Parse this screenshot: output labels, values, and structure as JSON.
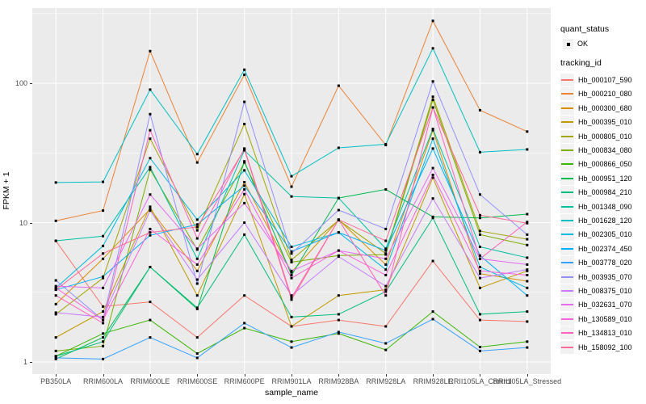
{
  "chart_data": {
    "type": "line",
    "title": "",
    "xlabel": "sample_name",
    "ylabel": "FPKM + 1",
    "y_scale": "log10",
    "ylim": [
      0.83,
      345
    ],
    "y_ticks": [
      1,
      10,
      100
    ],
    "y_tick_labels": [
      "1",
      "10",
      "100"
    ],
    "grid": true,
    "legend_position": "right",
    "point_color": "#000000",
    "categories": [
      "PB350LA",
      "RRIM600LA",
      "RRIM600LE",
      "RRIM600SE",
      "RRIM600PE",
      "RRIM901LA",
      "RRIM928BA",
      "RRIM928LA",
      "RRIM928LE",
      "RRII105LA_Control",
      "RRII105LA_Stressed"
    ],
    "series": [
      {
        "name": "Hb_000107_590",
        "color": "#F8766D",
        "values": [
          7.4,
          2.5,
          2.7,
          1.5,
          3.0,
          1.8,
          2.0,
          1.8,
          5.3,
          2.0,
          1.95
        ]
      },
      {
        "name": "Hb_000210_080",
        "color": "#EB8335",
        "values": [
          10.3,
          12.2,
          170,
          27,
          115,
          18.1,
          96,
          36,
          280,
          64,
          45
        ]
      },
      {
        "name": "Hb_000300_680",
        "color": "#D89000",
        "values": [
          2.6,
          5.5,
          12.5,
          4.5,
          19.5,
          4.4,
          10.5,
          5.0,
          46,
          4.3,
          3.8
        ]
      },
      {
        "name": "Hb_000395_010",
        "color": "#C09B00",
        "values": [
          1.5,
          2.3,
          13,
          3.0,
          16,
          1.8,
          3.0,
          3.3,
          21,
          3.4,
          4.5
        ]
      },
      {
        "name": "Hb_000805_010",
        "color": "#A3A500",
        "values": [
          2.2,
          4.0,
          40,
          8.8,
          51,
          5.4,
          10.4,
          6.0,
          80,
          8.7,
          7.6
        ]
      },
      {
        "name": "Hb_000834_080",
        "color": "#7CAE00",
        "values": [
          1.2,
          1.3,
          24,
          6.4,
          27,
          5.2,
          5.8,
          5.9,
          76,
          8.2,
          6.9
        ]
      },
      {
        "name": "Hb_000866_050",
        "color": "#39B600",
        "values": [
          1.1,
          1.6,
          2.0,
          1.15,
          1.75,
          1.4,
          1.6,
          1.22,
          2.3,
          1.28,
          1.4
        ]
      },
      {
        "name": "Hb_000951_120",
        "color": "#00BB4E",
        "values": [
          1.05,
          1.5,
          4.8,
          2.4,
          27.5,
          4.2,
          15,
          17.3,
          11,
          10.8,
          11.5
        ]
      },
      {
        "name": "Hb_000984_210",
        "color": "#00BF7D",
        "values": [
          1.1,
          1.4,
          4.8,
          2.45,
          8.2,
          2.1,
          2.2,
          3.2,
          10.8,
          2.2,
          2.3
        ]
      },
      {
        "name": "Hb_001348_090",
        "color": "#00C1A3",
        "values": [
          7.4,
          8.0,
          25,
          5.5,
          33,
          15.4,
          15,
          6.5,
          47,
          6.7,
          5.6
        ]
      },
      {
        "name": "Hb_001628_120",
        "color": "#00BFC4",
        "values": [
          19.4,
          19.6,
          90,
          31,
          125,
          21.5,
          34.4,
          36.5,
          178,
          32,
          33.5
        ]
      },
      {
        "name": "Hb_002305_010",
        "color": "#00BAE0",
        "values": [
          3.4,
          6.8,
          29,
          10.5,
          23.7,
          6.7,
          8.5,
          4.6,
          40,
          4.8,
          3.4
        ]
      },
      {
        "name": "Hb_002374_450",
        "color": "#00B0F6",
        "values": [
          3.3,
          4.1,
          8.1,
          9.7,
          18.4,
          6.2,
          8.5,
          6.3,
          34,
          5.8,
          3.0
        ]
      },
      {
        "name": "Hb_003778_020",
        "color": "#35A2FF",
        "values": [
          1.07,
          1.05,
          1.5,
          1.07,
          1.9,
          1.27,
          1.64,
          1.36,
          2.03,
          1.2,
          1.27
        ]
      },
      {
        "name": "Hb_003935_070",
        "color": "#9590FF",
        "values": [
          3.85,
          2.0,
          60,
          3.65,
          73.5,
          6.0,
          12.3,
          9.0,
          103,
          15.9,
          8.2
        ]
      },
      {
        "name": "Hb_008375_010",
        "color": "#C77CFF",
        "values": [
          2.26,
          2.1,
          12.2,
          3.9,
          10,
          3.0,
          5.7,
          3.5,
          14.9,
          4.0,
          4.6
        ]
      },
      {
        "name": "Hb_032631_070",
        "color": "#E76BF3",
        "values": [
          3.5,
          3.4,
          15.9,
          6.5,
          13.8,
          4.5,
          6.3,
          5.5,
          24.6,
          5.5,
          5.0
        ]
      },
      {
        "name": "Hb_130589_010",
        "color": "#FA62DB",
        "values": [
          3.4,
          2.0,
          9.0,
          5.0,
          17.3,
          4.0,
          6.3,
          4.2,
          22,
          4.5,
          4.2
        ]
      },
      {
        "name": "Hb_134813_010",
        "color": "#FF62BC",
        "values": [
          3.0,
          1.9,
          46,
          7.7,
          34,
          2.9,
          10.5,
          3.0,
          67,
          5.5,
          10.1
        ]
      },
      {
        "name": "Hb_158092_100",
        "color": "#FF6A98",
        "values": [
          3.3,
          6.0,
          8.5,
          9.3,
          33.5,
          2.8,
          10.5,
          7.4,
          67,
          11.3,
          9.9
        ]
      }
    ],
    "legends": {
      "quant_status": {
        "title": "quant_status",
        "items": [
          {
            "label": "OK"
          }
        ]
      },
      "tracking_id": {
        "title": "tracking_id"
      }
    },
    "colors": {
      "panel_bg": "#EBEBEB",
      "grid_major": "#FFFFFF",
      "grid_minor": "#F5F5F5",
      "axis_text": "#4D4D4D",
      "legend_key_bg": "#F2F2F2"
    }
  }
}
